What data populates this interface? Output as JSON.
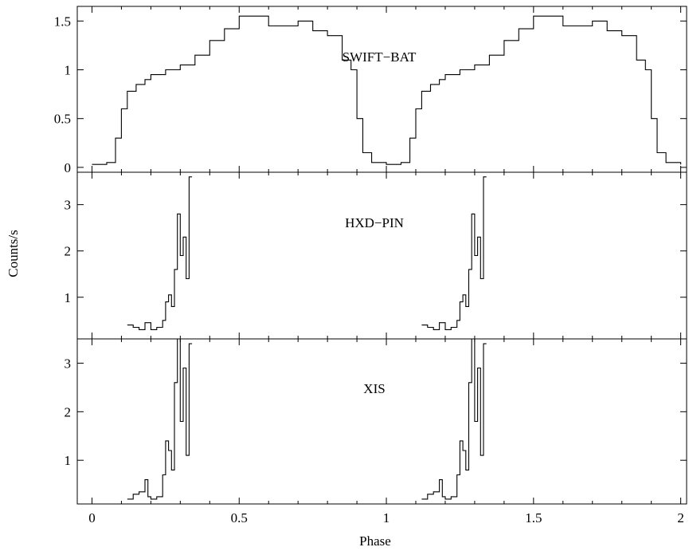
{
  "chart_data": {
    "type": "line",
    "style": "step",
    "xlabel": "Phase",
    "ylabel": "Counts/s",
    "xlim": [
      -0.05,
      2.02
    ],
    "x_ticks": [
      0,
      0.5,
      1,
      1.5,
      2
    ],
    "x_tick_labels": [
      "0",
      "0.5",
      "1",
      "1.5",
      "2"
    ],
    "grid": false,
    "panels": [
      {
        "label": "SWIFT−BAT",
        "ylim": [
          -0.05,
          1.65
        ],
        "y_ticks": [
          0,
          0.5,
          1,
          1.5
        ],
        "y_tick_labels": [
          "0",
          "0.5",
          "1",
          "1.5"
        ],
        "series": [
          {
            "phase": [
              0.0,
              0.05,
              0.08,
              0.1,
              0.12,
              0.15,
              0.18,
              0.2,
              0.25,
              0.3,
              0.35,
              0.4,
              0.45,
              0.5,
              0.55,
              0.6,
              0.65,
              0.7,
              0.75,
              0.8,
              0.85,
              0.88,
              0.9,
              0.92,
              0.95,
              1.0,
              1.05,
              1.08,
              1.1,
              1.12,
              1.15,
              1.18,
              1.2,
              1.25,
              1.3,
              1.35,
              1.4,
              1.45,
              1.5,
              1.55,
              1.6,
              1.65,
              1.7,
              1.75,
              1.8,
              1.85,
              1.88,
              1.9,
              1.92,
              1.95,
              2.0
            ],
            "counts": [
              0.03,
              0.05,
              0.3,
              0.6,
              0.78,
              0.85,
              0.9,
              0.95,
              1.0,
              1.05,
              1.15,
              1.3,
              1.42,
              1.55,
              1.55,
              1.45,
              1.45,
              1.5,
              1.4,
              1.35,
              1.1,
              1.0,
              0.5,
              0.15,
              0.05,
              0.03,
              0.05,
              0.3,
              0.6,
              0.78,
              0.85,
              0.9,
              0.95,
              1.0,
              1.05,
              1.15,
              1.3,
              1.42,
              1.55,
              1.55,
              1.45,
              1.45,
              1.5,
              1.4,
              1.35,
              1.1,
              1.0,
              0.5,
              0.15,
              0.05,
              0.03
            ]
          }
        ]
      },
      {
        "label": "HXD−PIN",
        "ylim": [
          0.1,
          3.7
        ],
        "y_ticks": [
          1,
          2,
          3
        ],
        "y_tick_labels": [
          "1",
          "2",
          "3"
        ],
        "series": [
          {
            "phase": [
              0.12,
              0.14,
              0.16,
              0.18,
              0.2,
              0.22,
              0.24,
              0.25,
              0.26,
              0.27,
              0.28,
              0.29,
              0.3,
              0.31,
              0.32,
              0.33,
              0.34,
              1.12,
              1.14,
              1.16,
              1.18,
              1.2,
              1.22,
              1.24,
              1.25,
              1.26,
              1.27,
              1.28,
              1.29,
              1.3,
              1.31,
              1.32,
              1.33,
              1.34
            ],
            "counts": [
              0.4,
              0.35,
              0.3,
              0.45,
              0.3,
              0.35,
              0.5,
              0.9,
              1.05,
              0.8,
              1.6,
              2.8,
              1.9,
              2.3,
              1.4,
              3.6,
              3.6,
              0.4,
              0.35,
              0.3,
              0.45,
              0.3,
              0.35,
              0.5,
              0.9,
              1.05,
              0.8,
              1.6,
              2.8,
              1.9,
              2.3,
              1.4,
              3.6,
              3.6
            ]
          }
        ]
      },
      {
        "label": "XIS",
        "ylim": [
          0.1,
          3.5
        ],
        "y_ticks": [
          1,
          2,
          3
        ],
        "y_tick_labels": [
          "1",
          "2",
          "3"
        ],
        "series": [
          {
            "phase": [
              0.12,
              0.14,
              0.16,
              0.18,
              0.19,
              0.2,
              0.22,
              0.24,
              0.25,
              0.26,
              0.27,
              0.28,
              0.29,
              0.3,
              0.31,
              0.32,
              0.33,
              0.34,
              1.12,
              1.14,
              1.16,
              1.18,
              1.19,
              1.2,
              1.22,
              1.24,
              1.25,
              1.26,
              1.27,
              1.28,
              1.29,
              1.3,
              1.31,
              1.32,
              1.33,
              1.34
            ],
            "counts": [
              0.2,
              0.3,
              0.35,
              0.6,
              0.25,
              0.2,
              0.25,
              0.7,
              1.4,
              1.2,
              0.8,
              2.6,
              3.5,
              1.8,
              2.9,
              1.1,
              3.4,
              3.4,
              0.2,
              0.3,
              0.35,
              0.6,
              0.25,
              0.2,
              0.25,
              0.7,
              1.4,
              1.2,
              0.8,
              2.6,
              3.5,
              1.8,
              2.9,
              1.1,
              3.4,
              3.4
            ]
          }
        ]
      }
    ]
  }
}
